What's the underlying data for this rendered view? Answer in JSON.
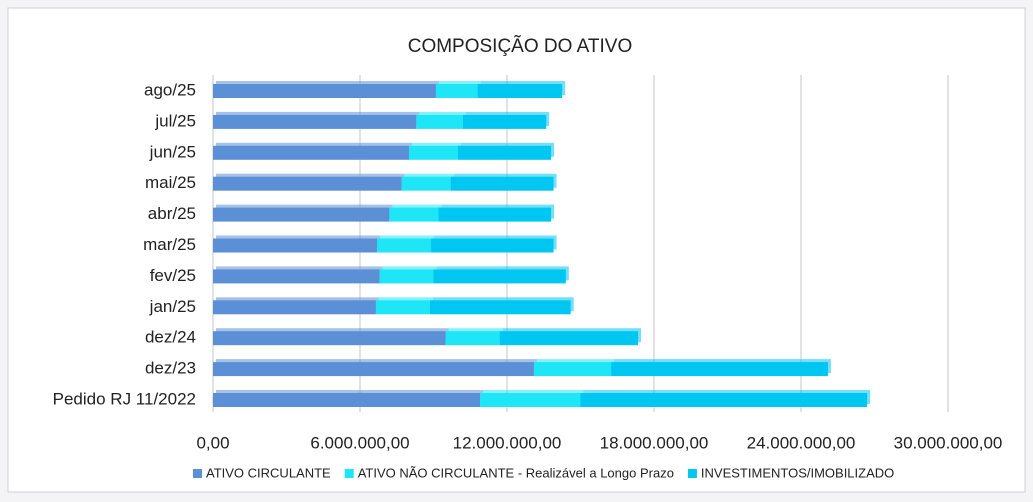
{
  "chart_data": {
    "type": "bar",
    "orientation": "horizontal",
    "stacked": true,
    "title": "COMPOSIÇÃO DO ATIVO",
    "categories": [
      "ago/25",
      "jul/25",
      "jun/25",
      "mai/25",
      "abr/25",
      "mar/25",
      "fev/25",
      "jan/25",
      "dez/24",
      "dez/23",
      "Pedido RJ 11/2022"
    ],
    "series": [
      {
        "name": "ATIVO CIRCULANTE",
        "color": "#5b8fd6",
        "values": [
          9100000,
          8300000,
          8000000,
          7700000,
          7200000,
          6700000,
          6800000,
          6650000,
          9500000,
          13100000,
          10900000
        ]
      },
      {
        "name": "ATIVO NÃO CIRCULANTE - Realizável a Longo Prazo",
        "color": "#1fe6f7",
        "values": [
          1700000,
          1900000,
          2000000,
          2000000,
          2000000,
          2200000,
          2200000,
          2200000,
          2200000,
          3150000,
          4100000
        ]
      },
      {
        "name": "INVESTIMENTOS/IMOBILIZADO",
        "color": "#00c6f2",
        "values": [
          3450000,
          3400000,
          3800000,
          4200000,
          4600000,
          5000000,
          5400000,
          5750000,
          5650000,
          8850000,
          11700000
        ]
      }
    ],
    "xlim": [
      0,
      30000000
    ],
    "xticks": [
      {
        "value": 0,
        "label": "0,00"
      },
      {
        "value": 6000000,
        "label": "6.000.000,00"
      },
      {
        "value": 12000000,
        "label": "12.000.000,00"
      },
      {
        "value": 18000000,
        "label": "18.000.000,00"
      },
      {
        "value": 24000000,
        "label": "24.000.000,00"
      },
      {
        "value": 30000000,
        "label": "30.000.000,00"
      }
    ],
    "grid": true,
    "legend": "bottom"
  }
}
